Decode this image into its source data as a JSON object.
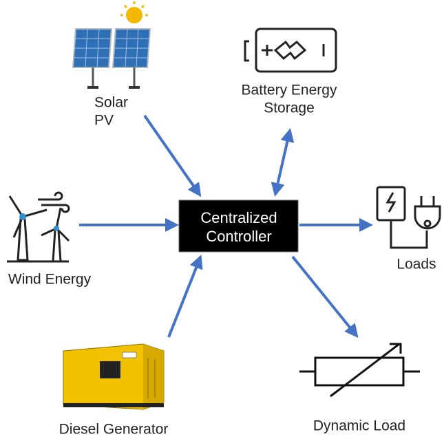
{
  "center": {
    "label": [
      "Centralized",
      "Controller"
    ]
  },
  "nodes": [
    {
      "label": [
        "Solar",
        "PV"
      ]
    },
    {
      "label": [
        "Battery Energy",
        "Storage"
      ]
    },
    {
      "label": [
        "Wind Energy"
      ]
    },
    {
      "label": [
        "Loads"
      ]
    },
    {
      "label": [
        "Diesel Generator"
      ]
    },
    {
      "label": [
        "Dynamic Load"
      ]
    }
  ]
}
